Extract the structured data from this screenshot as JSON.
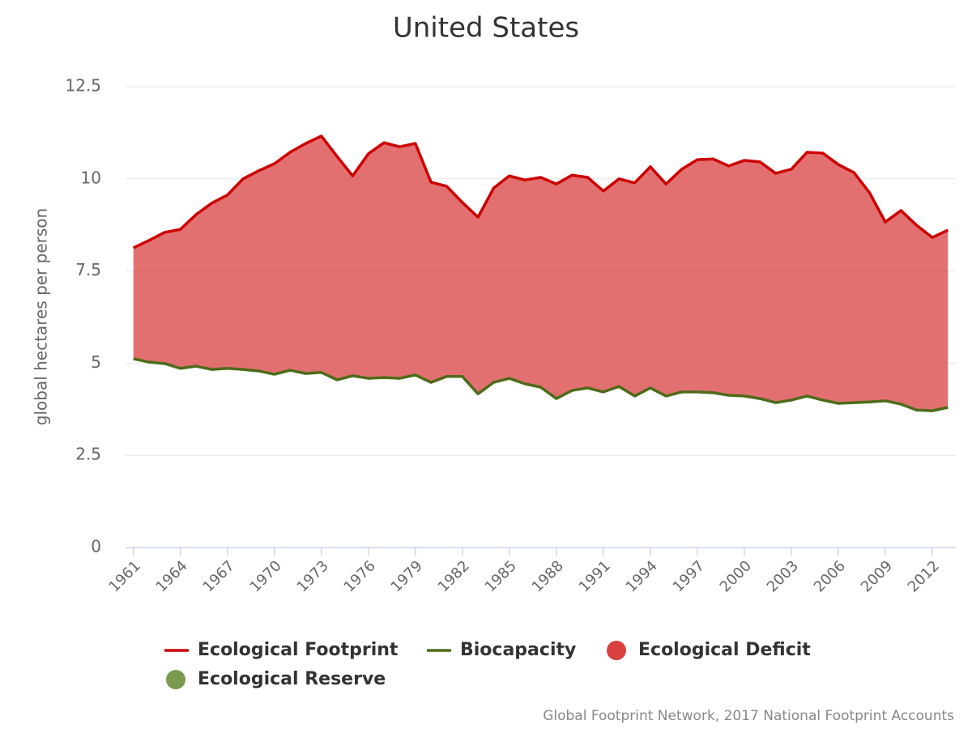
{
  "chart_data": {
    "type": "area-line",
    "title": "United States",
    "ylabel": "global hectares per person",
    "source": "Global Footprint Network, 2017 National Footprint Accounts",
    "x": [
      1961,
      1962,
      1963,
      1964,
      1965,
      1966,
      1967,
      1968,
      1969,
      1970,
      1971,
      1972,
      1973,
      1974,
      1975,
      1976,
      1977,
      1978,
      1979,
      1980,
      1981,
      1982,
      1983,
      1984,
      1985,
      1986,
      1987,
      1988,
      1989,
      1990,
      1991,
      1992,
      1993,
      1994,
      1995,
      1996,
      1997,
      1998,
      1999,
      2000,
      2001,
      2002,
      2003,
      2004,
      2005,
      2006,
      2007,
      2008,
      2009,
      2010,
      2011,
      2012,
      2013
    ],
    "series": [
      {
        "name": "Ecological Footprint",
        "color": "#cc0000",
        "values": [
          8.13,
          8.33,
          8.55,
          8.63,
          9.03,
          9.34,
          9.56,
          10.0,
          10.22,
          10.41,
          10.72,
          10.96,
          11.16,
          10.61,
          10.08,
          10.68,
          10.98,
          10.87,
          10.96,
          9.91,
          9.8,
          9.36,
          8.96,
          9.75,
          10.08,
          9.97,
          10.04,
          9.86,
          10.1,
          10.04,
          9.67,
          10.0,
          9.89,
          10.33,
          9.86,
          10.26,
          10.52,
          10.54,
          10.35,
          10.5,
          10.46,
          10.15,
          10.26,
          10.72,
          10.7,
          10.39,
          10.17,
          9.62,
          8.83,
          9.14,
          8.74,
          8.41,
          8.61
        ]
      },
      {
        "name": "Biocapacity",
        "color": "#4d6b19",
        "values": [
          5.12,
          5.03,
          4.99,
          4.86,
          4.92,
          4.83,
          4.86,
          4.83,
          4.79,
          4.7,
          4.81,
          4.72,
          4.75,
          4.55,
          4.66,
          4.59,
          4.61,
          4.59,
          4.68,
          4.48,
          4.64,
          4.64,
          4.17,
          4.48,
          4.59,
          4.44,
          4.35,
          4.04,
          4.26,
          4.33,
          4.22,
          4.37,
          4.11,
          4.33,
          4.11,
          4.22,
          4.22,
          4.2,
          4.13,
          4.11,
          4.04,
          3.93,
          4.0,
          4.11,
          4.0,
          3.91,
          3.93,
          3.95,
          3.98,
          3.89,
          3.73,
          3.71,
          3.8
        ]
      }
    ],
    "areas": [
      {
        "name": "Ecological Deficit",
        "color": "#d94040"
      },
      {
        "name": "Ecological Reserve",
        "color": "#7a9a50"
      }
    ],
    "xlim": [
      1960.5,
      2013.5
    ],
    "xticks": [
      1961,
      1964,
      1967,
      1970,
      1973,
      1976,
      1979,
      1982,
      1985,
      1988,
      1991,
      1994,
      1997,
      2000,
      2003,
      2006,
      2009,
      2012
    ],
    "ylim": [
      0,
      12.5
    ],
    "yticks": [
      0,
      2.5,
      5,
      7.5,
      10,
      12.5
    ],
    "grid": true
  }
}
